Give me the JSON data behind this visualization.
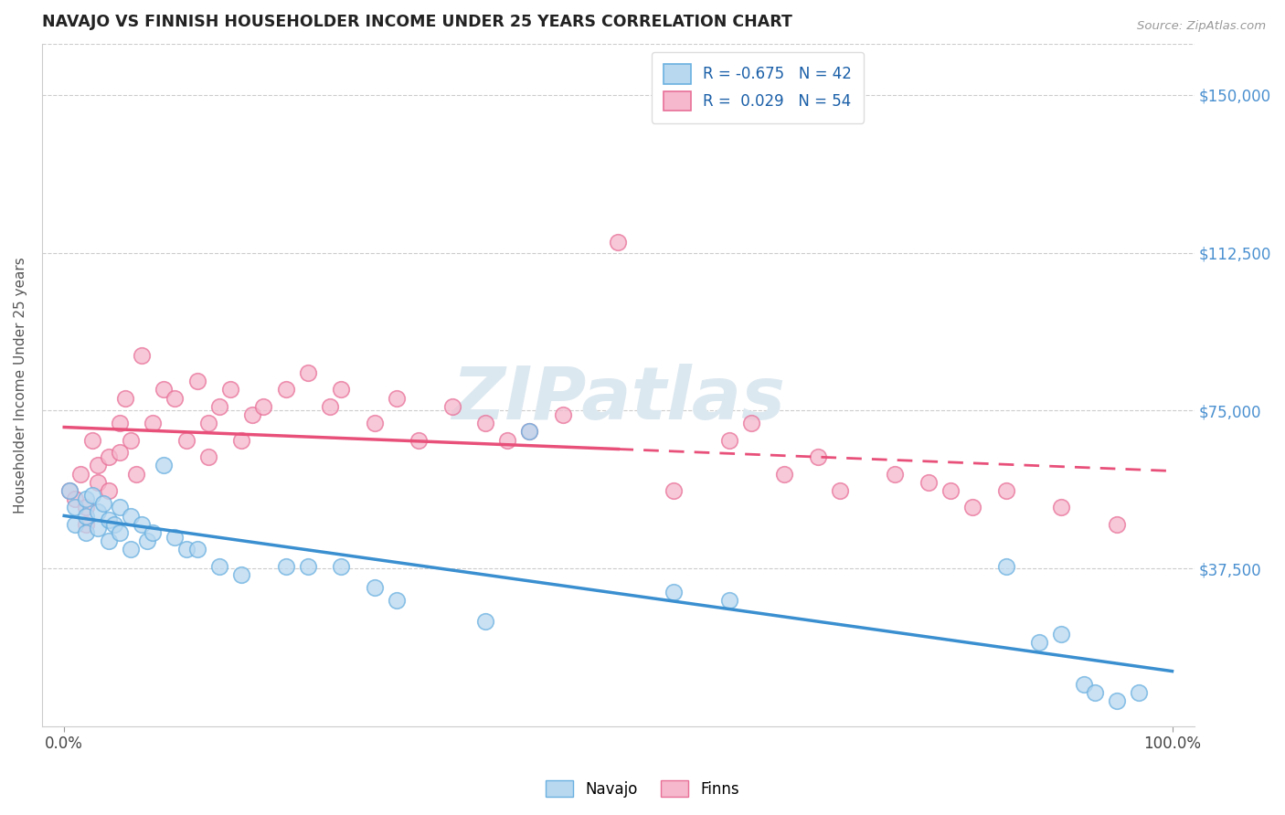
{
  "title": "NAVAJO VS FINNISH HOUSEHOLDER INCOME UNDER 25 YEARS CORRELATION CHART",
  "source": "Source: ZipAtlas.com",
  "ylabel": "Householder Income Under 25 years",
  "xlabel_ticks": [
    "0.0%",
    "100.0%"
  ],
  "ytick_labels": [
    "$37,500",
    "$75,000",
    "$112,500",
    "$150,000"
  ],
  "ytick_values": [
    37500,
    75000,
    112500,
    150000
  ],
  "ylim": [
    0,
    162000
  ],
  "xlim": [
    -0.02,
    1.02
  ],
  "legend_navajo_R": "-0.675",
  "legend_navajo_N": "42",
  "legend_finns_R": "0.029",
  "legend_finns_N": "54",
  "navajo_color": "#b8d8f0",
  "finns_color": "#f5b8cc",
  "navajo_edge_color": "#6ab0e0",
  "finns_edge_color": "#e87098",
  "navajo_line_color": "#3a8fd0",
  "finns_line_color": "#e8507a",
  "watermark_color": "#dce8f0",
  "background_color": "#ffffff",
  "navajo_x": [
    0.005,
    0.01,
    0.01,
    0.02,
    0.02,
    0.02,
    0.025,
    0.03,
    0.03,
    0.035,
    0.04,
    0.04,
    0.045,
    0.05,
    0.05,
    0.06,
    0.06,
    0.07,
    0.075,
    0.08,
    0.09,
    0.1,
    0.11,
    0.12,
    0.14,
    0.16,
    0.2,
    0.22,
    0.25,
    0.28,
    0.3,
    0.38,
    0.42,
    0.55,
    0.6,
    0.85,
    0.88,
    0.9,
    0.92,
    0.93,
    0.95,
    0.97
  ],
  "navajo_y": [
    56000,
    52000,
    48000,
    54000,
    50000,
    46000,
    55000,
    51000,
    47000,
    53000,
    49000,
    44000,
    48000,
    52000,
    46000,
    50000,
    42000,
    48000,
    44000,
    46000,
    62000,
    45000,
    42000,
    42000,
    38000,
    36000,
    38000,
    38000,
    38000,
    33000,
    30000,
    25000,
    70000,
    32000,
    30000,
    38000,
    20000,
    22000,
    10000,
    8000,
    6000,
    8000
  ],
  "finns_x": [
    0.005,
    0.01,
    0.015,
    0.02,
    0.02,
    0.025,
    0.03,
    0.03,
    0.04,
    0.04,
    0.05,
    0.05,
    0.055,
    0.06,
    0.065,
    0.07,
    0.08,
    0.09,
    0.1,
    0.11,
    0.12,
    0.13,
    0.13,
    0.14,
    0.15,
    0.16,
    0.17,
    0.18,
    0.2,
    0.22,
    0.24,
    0.25,
    0.28,
    0.3,
    0.32,
    0.35,
    0.38,
    0.4,
    0.42,
    0.45,
    0.5,
    0.55,
    0.6,
    0.62,
    0.65,
    0.68,
    0.7,
    0.75,
    0.78,
    0.8,
    0.82,
    0.85,
    0.9,
    0.95
  ],
  "finns_y": [
    56000,
    54000,
    60000,
    52000,
    48000,
    68000,
    62000,
    58000,
    64000,
    56000,
    72000,
    65000,
    78000,
    68000,
    60000,
    88000,
    72000,
    80000,
    78000,
    68000,
    82000,
    72000,
    64000,
    76000,
    80000,
    68000,
    74000,
    76000,
    80000,
    84000,
    76000,
    80000,
    72000,
    78000,
    68000,
    76000,
    72000,
    68000,
    70000,
    74000,
    115000,
    56000,
    68000,
    72000,
    60000,
    64000,
    56000,
    60000,
    58000,
    56000,
    52000,
    56000,
    52000,
    48000
  ]
}
